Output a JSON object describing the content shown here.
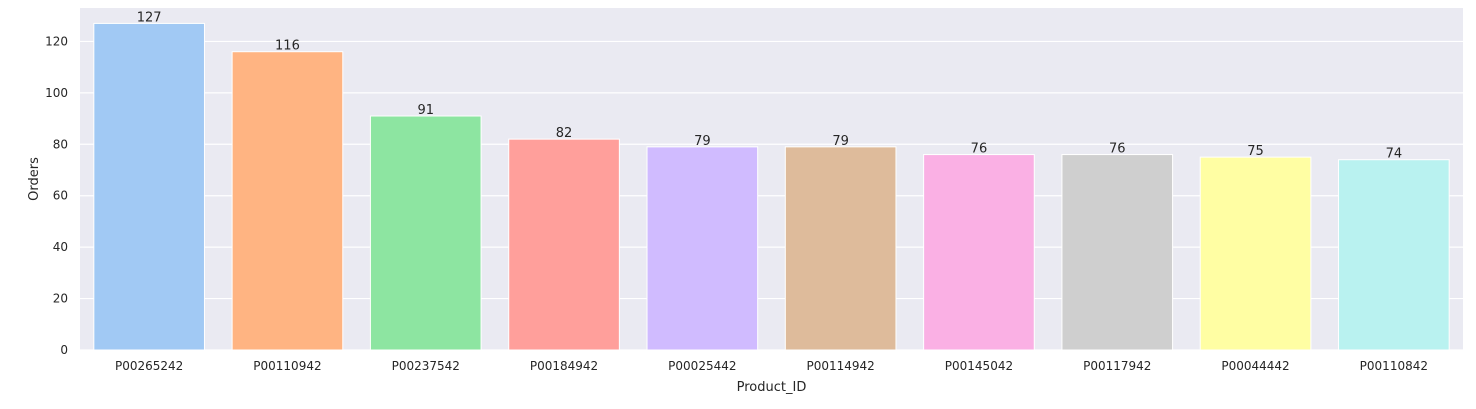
{
  "chart_data": {
    "type": "bar",
    "categories": [
      "P00265242",
      "P00110942",
      "P00237542",
      "P00184942",
      "P00025442",
      "P00114942",
      "P00145042",
      "P00117942",
      "P00044442",
      "P00110842"
    ],
    "values": [
      127,
      116,
      91,
      82,
      79,
      79,
      76,
      76,
      75,
      74
    ],
    "data_labels": [
      "127",
      "116",
      "91",
      "82",
      "79",
      "79",
      "76",
      "76",
      "75",
      "74"
    ],
    "colors": [
      "#a1c9f4",
      "#ffb482",
      "#8de5a1",
      "#ff9f9b",
      "#d0bbff",
      "#debb9b",
      "#fab0e4",
      "#cfcfcf",
      "#fffea3",
      "#b9f2f0"
    ],
    "xlabel": "Product_ID",
    "ylabel": "Orders",
    "ylim": [
      0,
      133
    ],
    "yticks": [
      0,
      20,
      40,
      60,
      80,
      100,
      120
    ],
    "ytick_labels": [
      "0",
      "20",
      "40",
      "60",
      "80",
      "100",
      "120"
    ],
    "grid": true,
    "background_color": "#eaeaf2",
    "grid_color": "#ffffff"
  }
}
